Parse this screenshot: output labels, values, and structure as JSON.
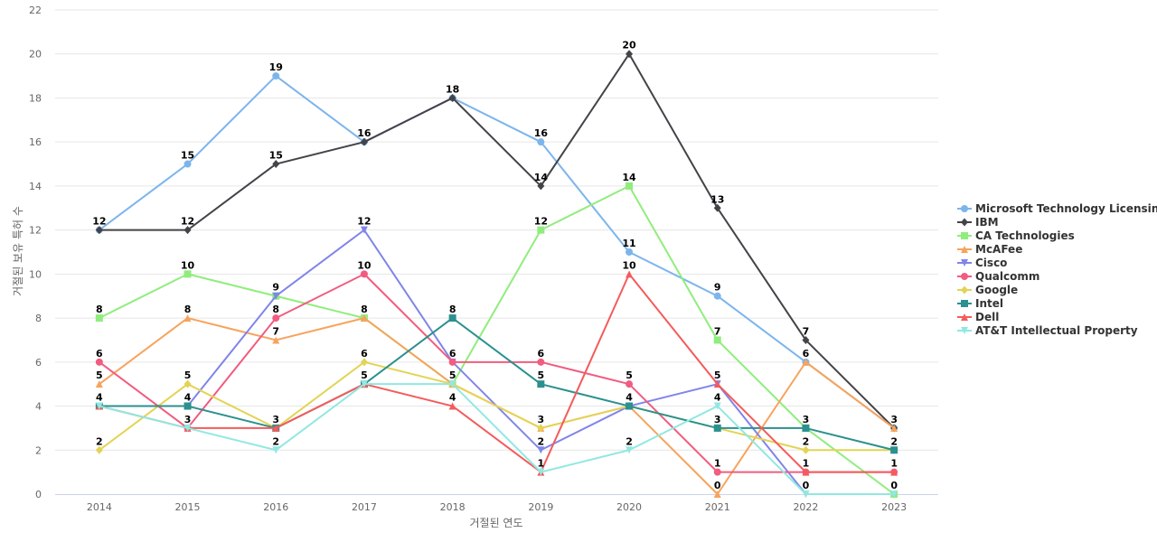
{
  "chart_data": {
    "type": "line",
    "title": "",
    "xlabel": "거절된 연도",
    "ylabel": "거절된 보유 특허 수",
    "x": [
      2014,
      2015,
      2016,
      2017,
      2018,
      2019,
      2020,
      2021,
      2022,
      2023
    ],
    "ylim": [
      0,
      22
    ],
    "yticks": [
      0,
      2,
      4,
      6,
      8,
      10,
      12,
      14,
      16,
      18,
      20,
      22
    ],
    "grid": true,
    "legend_position": "right",
    "series": [
      {
        "name": "Microsoft Technology Licensing",
        "color": "#7cb5ec",
        "marker": "circle",
        "values": [
          12,
          15,
          19,
          16,
          18,
          16,
          11,
          9,
          6,
          3
        ]
      },
      {
        "name": "IBM",
        "color": "#434348",
        "marker": "diamond",
        "values": [
          12,
          12,
          15,
          16,
          18,
          14,
          20,
          13,
          7,
          3
        ]
      },
      {
        "name": "CA Technologies",
        "color": "#90ed7d",
        "marker": "square",
        "values": [
          8,
          10,
          9,
          8,
          5,
          12,
          14,
          7,
          3,
          0
        ]
      },
      {
        "name": "McAFee",
        "color": "#f7a35c",
        "marker": "triangle",
        "values": [
          5,
          8,
          7,
          8,
          5,
          3,
          4,
          0,
          6,
          3
        ]
      },
      {
        "name": "Cisco",
        "color": "#8085e9",
        "marker": "triangle-down",
        "values": [
          4,
          4,
          9,
          12,
          6,
          2,
          4,
          5,
          0,
          0
        ]
      },
      {
        "name": "Qualcomm",
        "color": "#f15c80",
        "marker": "circle",
        "values": [
          6,
          3,
          8,
          10,
          6,
          6,
          5,
          1,
          1,
          1
        ]
      },
      {
        "name": "Google",
        "color": "#e4d354",
        "marker": "diamond",
        "values": [
          2,
          5,
          3,
          6,
          5,
          3,
          4,
          3,
          2,
          2
        ]
      },
      {
        "name": "Intel",
        "color": "#2b908f",
        "marker": "square",
        "values": [
          4,
          4,
          3,
          5,
          8,
          5,
          4,
          3,
          3,
          2
        ]
      },
      {
        "name": "Dell",
        "color": "#f45b5b",
        "marker": "triangle",
        "values": [
          4,
          3,
          3,
          5,
          4,
          1,
          10,
          5,
          1,
          1
        ]
      },
      {
        "name": "AT&T Intellectual Property",
        "color": "#91e8e1",
        "marker": "triangle-down",
        "values": [
          4,
          3,
          2,
          5,
          5,
          1,
          2,
          4,
          0,
          0
        ]
      }
    ],
    "data_labels": [
      {
        "x": 2014,
        "value": 12
      },
      {
        "x": 2014,
        "value": 8
      },
      {
        "x": 2014,
        "value": 6
      },
      {
        "x": 2014,
        "value": 5
      },
      {
        "x": 2014,
        "value": 4
      },
      {
        "x": 2014,
        "value": 2
      },
      {
        "x": 2015,
        "value": 15
      },
      {
        "x": 2015,
        "value": 12
      },
      {
        "x": 2015,
        "value": 10
      },
      {
        "x": 2015,
        "value": 8
      },
      {
        "x": 2015,
        "value": 5
      },
      {
        "x": 2015,
        "value": 4
      },
      {
        "x": 2015,
        "value": 3
      },
      {
        "x": 2016,
        "value": 19
      },
      {
        "x": 2016,
        "value": 15
      },
      {
        "x": 2016,
        "value": 9
      },
      {
        "x": 2016,
        "value": 8
      },
      {
        "x": 2016,
        "value": 7
      },
      {
        "x": 2016,
        "value": 3
      },
      {
        "x": 2016,
        "value": 2
      },
      {
        "x": 2017,
        "value": 16
      },
      {
        "x": 2017,
        "value": 12
      },
      {
        "x": 2017,
        "value": 10
      },
      {
        "x": 2017,
        "value": 8
      },
      {
        "x": 2017,
        "value": 6
      },
      {
        "x": 2017,
        "value": 5
      },
      {
        "x": 2018,
        "value": 18
      },
      {
        "x": 2018,
        "value": 8
      },
      {
        "x": 2018,
        "value": 6
      },
      {
        "x": 2018,
        "value": 5
      },
      {
        "x": 2018,
        "value": 4
      },
      {
        "x": 2019,
        "value": 16
      },
      {
        "x": 2019,
        "value": 14
      },
      {
        "x": 2019,
        "value": 12
      },
      {
        "x": 2019,
        "value": 6
      },
      {
        "x": 2019,
        "value": 5
      },
      {
        "x": 2019,
        "value": 3
      },
      {
        "x": 2019,
        "value": 2
      },
      {
        "x": 2019,
        "value": 1
      },
      {
        "x": 2020,
        "value": 20
      },
      {
        "x": 2020,
        "value": 14
      },
      {
        "x": 2020,
        "value": 11
      },
      {
        "x": 2020,
        "value": 10
      },
      {
        "x": 2020,
        "value": 5
      },
      {
        "x": 2020,
        "value": 4
      },
      {
        "x": 2020,
        "value": 2
      },
      {
        "x": 2021,
        "value": 13
      },
      {
        "x": 2021,
        "value": 9
      },
      {
        "x": 2021,
        "value": 7
      },
      {
        "x": 2021,
        "value": 5
      },
      {
        "x": 2021,
        "value": 4
      },
      {
        "x": 2021,
        "value": 3
      },
      {
        "x": 2021,
        "value": 1
      },
      {
        "x": 2021,
        "value": 0
      },
      {
        "x": 2022,
        "value": 7
      },
      {
        "x": 2022,
        "value": 6
      },
      {
        "x": 2022,
        "value": 3
      },
      {
        "x": 2022,
        "value": 2
      },
      {
        "x": 2022,
        "value": 1
      },
      {
        "x": 2022,
        "value": 0
      },
      {
        "x": 2023,
        "value": 3
      },
      {
        "x": 2023,
        "value": 2
      },
      {
        "x": 2023,
        "value": 1
      },
      {
        "x": 2023,
        "value": 0
      }
    ]
  }
}
